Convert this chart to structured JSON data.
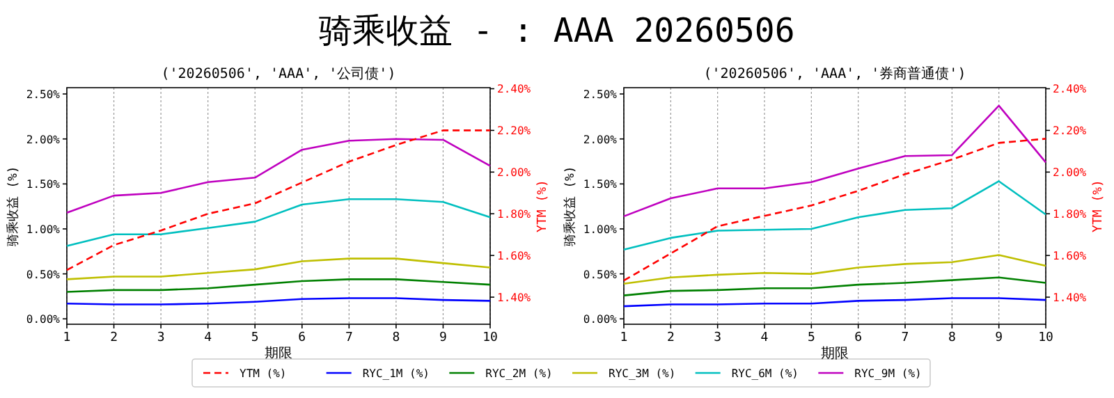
{
  "chart_data": [
    {
      "type": "line",
      "title": "('20260506', 'AAA', '公司债')",
      "annotations": [
        "骑乘收益 - : AAA 20260506"
      ],
      "xlabel": "期限",
      "ylabel": "骑乘收益 (%)",
      "y2label": "YTM (%)",
      "x": [
        1,
        2,
        3,
        4,
        5,
        6,
        7,
        8,
        9,
        10
      ],
      "xlim": [
        1,
        10
      ],
      "xticks": [
        1,
        2,
        3,
        4,
        5,
        6,
        7,
        8,
        9,
        10
      ],
      "ylim": [
        -0.06,
        2.57
      ],
      "yticks": [
        {
          "value": 0,
          "label": "0.00%"
        },
        {
          "value": 0.5,
          "label": "0.50%"
        },
        {
          "value": 1,
          "label": "1.00%"
        },
        {
          "value": 1.5,
          "label": "1.50%"
        },
        {
          "value": 2,
          "label": "2.00%"
        },
        {
          "value": 2.5,
          "label": "2.50%"
        }
      ],
      "y2lim": [
        1.27,
        2.405
      ],
      "y2ticks": [
        {
          "value": 1.4,
          "label": "1.40%"
        },
        {
          "value": 1.6,
          "label": "1.60%"
        },
        {
          "value": 1.8,
          "label": "1.80%"
        },
        {
          "value": 2.0,
          "label": "2.00%"
        },
        {
          "value": 2.2,
          "label": "2.20%"
        },
        {
          "value": 2.4,
          "label": "2.40%"
        }
      ],
      "grid": "x",
      "legend": "bottom",
      "series": [
        {
          "name": "YTM (%)",
          "color": "#ff0000",
          "axis": "y2",
          "line_style": "dashed",
          "values": [
            1.53,
            1.65,
            1.72,
            1.8,
            1.85,
            1.95,
            2.05,
            2.13,
            2.2,
            2.2
          ]
        },
        {
          "name": "RYC_1M (%)",
          "color": "#0000ff",
          "values": [
            0.17,
            0.16,
            0.16,
            0.17,
            0.19,
            0.22,
            0.23,
            0.23,
            0.21,
            0.2
          ]
        },
        {
          "name": "RYC_2M (%)",
          "color": "#008000",
          "values": [
            0.3,
            0.32,
            0.32,
            0.34,
            0.38,
            0.42,
            0.44,
            0.44,
            0.41,
            0.38
          ]
        },
        {
          "name": "RYC_3M (%)",
          "color": "#bfbf00",
          "values": [
            0.44,
            0.47,
            0.47,
            0.51,
            0.55,
            0.64,
            0.67,
            0.67,
            0.62,
            0.57
          ]
        },
        {
          "name": "RYC_6M (%)",
          "color": "#00bfbf",
          "values": [
            0.81,
            0.94,
            0.94,
            1.01,
            1.08,
            1.27,
            1.33,
            1.33,
            1.3,
            1.13
          ]
        },
        {
          "name": "RYC_9M (%)",
          "color": "#bf00bf",
          "values": [
            1.18,
            1.37,
            1.4,
            1.52,
            1.57,
            1.88,
            1.98,
            2.0,
            1.99,
            1.7
          ]
        }
      ]
    },
    {
      "type": "line",
      "title": "('20260506', 'AAA', '券商普通债')",
      "xlabel": "期限",
      "ylabel": "骑乘收益 (%)",
      "y2label": "YTM (%)",
      "x": [
        1,
        2,
        3,
        4,
        5,
        6,
        7,
        8,
        9,
        10
      ],
      "xlim": [
        1,
        10
      ],
      "xticks": [
        1,
        2,
        3,
        4,
        5,
        6,
        7,
        8,
        9,
        10
      ],
      "ylim": [
        -0.06,
        2.57
      ],
      "yticks": [
        {
          "value": 0,
          "label": "0.00%"
        },
        {
          "value": 0.5,
          "label": "0.50%"
        },
        {
          "value": 1,
          "label": "1.00%"
        },
        {
          "value": 1.5,
          "label": "1.50%"
        },
        {
          "value": 2,
          "label": "2.00%"
        },
        {
          "value": 2.5,
          "label": "2.50%"
        }
      ],
      "y2lim": [
        1.27,
        2.405
      ],
      "y2ticks": [
        {
          "value": 1.4,
          "label": "1.40%"
        },
        {
          "value": 1.6,
          "label": "1.60%"
        },
        {
          "value": 1.8,
          "label": "1.80%"
        },
        {
          "value": 2.0,
          "label": "2.00%"
        },
        {
          "value": 2.2,
          "label": "2.20%"
        },
        {
          "value": 2.4,
          "label": "2.40%"
        }
      ],
      "grid": "x",
      "series": [
        {
          "color": "#ff0000",
          "axis": "y2",
          "line_style": "dashed",
          "values": [
            1.48,
            1.61,
            1.74,
            1.79,
            1.84,
            1.91,
            1.99,
            2.06,
            2.14,
            2.16
          ]
        },
        {
          "color": "#0000ff",
          "values": [
            0.14,
            0.16,
            0.16,
            0.17,
            0.17,
            0.2,
            0.21,
            0.23,
            0.23,
            0.21
          ]
        },
        {
          "color": "#008000",
          "values": [
            0.26,
            0.31,
            0.32,
            0.34,
            0.34,
            0.38,
            0.4,
            0.43,
            0.46,
            0.4
          ]
        },
        {
          "color": "#bfbf00",
          "values": [
            0.39,
            0.46,
            0.49,
            0.51,
            0.5,
            0.57,
            0.61,
            0.63,
            0.71,
            0.59
          ]
        },
        {
          "color": "#00bfbf",
          "values": [
            0.77,
            0.9,
            0.98,
            0.99,
            1.0,
            1.13,
            1.21,
            1.23,
            1.53,
            1.16
          ]
        },
        {
          "color": "#bf00bf",
          "values": [
            1.14,
            1.34,
            1.45,
            1.45,
            1.52,
            1.67,
            1.81,
            1.82,
            2.37,
            1.74
          ]
        }
      ]
    }
  ]
}
